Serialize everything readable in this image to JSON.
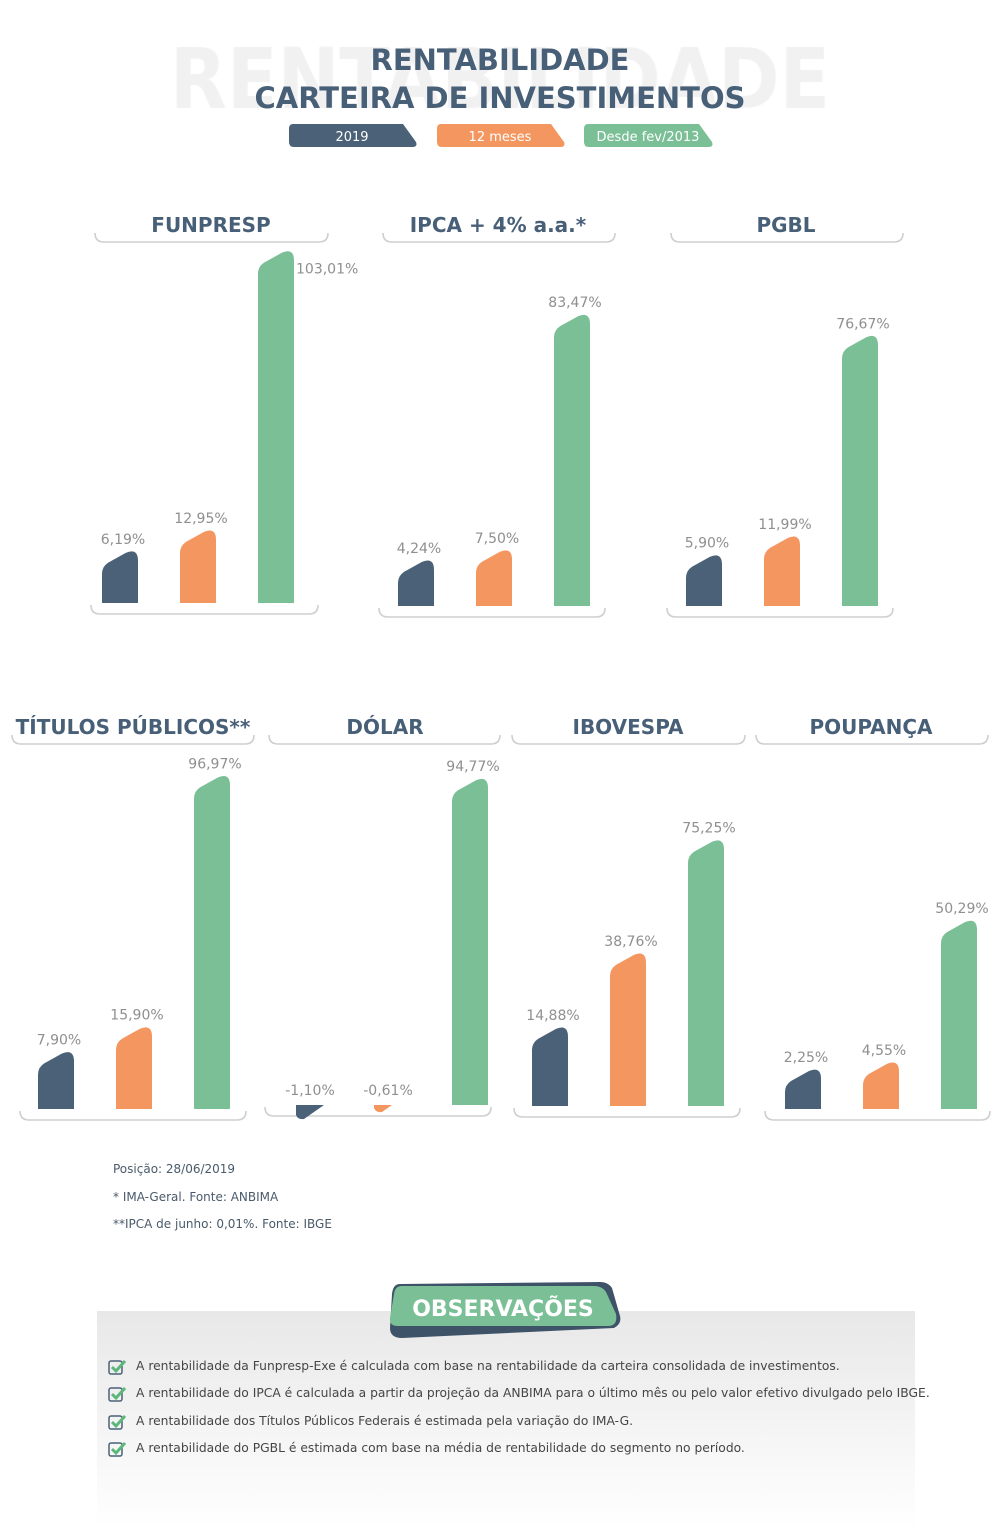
{
  "header": {
    "watermark": "RENTABILIDADE",
    "title_line1": "RENTABILIDADE",
    "title_line2": "CARTEIRA DE INVESTIMENTOS"
  },
  "legend": [
    {
      "label": "2019",
      "color": "#4a6178"
    },
    {
      "label": "12 meses",
      "color": "#f4965f"
    },
    {
      "label": "Desde fev/2013",
      "color": "#7bbf96"
    }
  ],
  "chart_data": {
    "type": "bar",
    "series": [
      "2019",
      "12 meses",
      "Desde fev/2013"
    ],
    "colors": [
      "#4a6178",
      "#f4965f",
      "#7bbf96"
    ],
    "unit": "%",
    "panels": [
      {
        "title": "FUNPRESP",
        "values": [
          6.19,
          12.95,
          103.01
        ]
      },
      {
        "title": "IPCA + 4% a.a.*",
        "values": [
          4.24,
          7.5,
          83.47
        ]
      },
      {
        "title": "PGBL",
        "values": [
          5.9,
          11.99,
          76.67
        ]
      },
      {
        "title": "TÍTULOS PÚBLICOS**",
        "values": [
          7.9,
          15.9,
          96.97
        ]
      },
      {
        "title": "DÓLAR",
        "values": [
          -1.1,
          -0.61,
          94.77
        ]
      },
      {
        "title": "IBOVESPA",
        "values": [
          14.88,
          38.76,
          75.25
        ]
      },
      {
        "title": "POUPANÇA",
        "values": [
          2.25,
          4.55,
          50.29
        ]
      }
    ]
  },
  "footnotes": [
    "Posição: 28/06/2019",
    "* IMA-Geral. Fonte: ANBIMA",
    "**IPCA de junho: 0,01%. Fonte: IBGE"
  ],
  "observacoes": {
    "title": "OBSERVAÇÕES",
    "items": [
      "A rentabilidade da Funpresp-Exe é calculada com base na rentabilidade da carteira consolidada de investimentos.",
      "A rentabilidade do IPCA é calculada a partir da projeção da ANBIMA para o último mês ou pelo valor efetivo divulgado pelo IBGE.",
      "A rentabilidade dos Títulos Públicos Federais é estimada pela variação do IMA-G.",
      "A rentabilidade do PGBL é estimada com base na média de rentabilidade do segmento no período."
    ]
  }
}
